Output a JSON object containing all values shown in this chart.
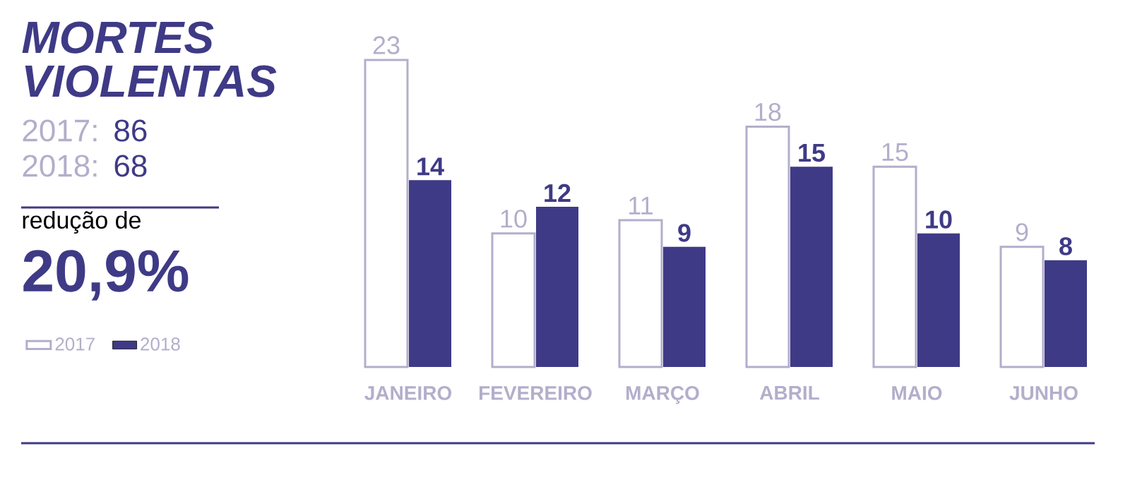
{
  "chart_data": {
    "type": "bar",
    "title": "MORTES VIOLENTAS",
    "annotations": [
      "2017:",
      "86",
      "2018:",
      "68",
      "redução de",
      "20,9%"
    ],
    "categories": [
      "JANEIRO",
      "FEVEREIRO",
      "MARÇO",
      "ABRIL",
      "MAIO",
      "JUNHO"
    ],
    "series": [
      {
        "name": "2017",
        "color": "#b3aecb",
        "values": [
          23,
          10,
          11,
          18,
          15,
          9
        ]
      },
      {
        "name": "2018",
        "color": "#3f3a86",
        "values": [
          14,
          12,
          9,
          15,
          10,
          8
        ]
      }
    ],
    "data_labels": true,
    "legend": "left"
  }
}
